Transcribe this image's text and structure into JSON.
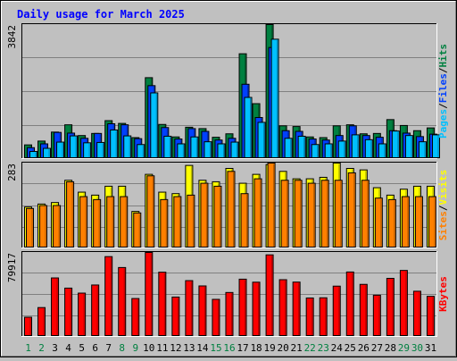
{
  "chart_data": {
    "type": "bar",
    "title": "Daily usage for March 2025",
    "categories": [
      "1",
      "2",
      "3",
      "4",
      "5",
      "6",
      "7",
      "8",
      "9",
      "10",
      "11",
      "12",
      "13",
      "14",
      "15",
      "16",
      "17",
      "18",
      "19",
      "20",
      "21",
      "22",
      "23",
      "24",
      "25",
      "26",
      "27",
      "28",
      "29",
      "30",
      "31"
    ],
    "weekend_days": [
      "1",
      "2",
      "8",
      "9",
      "15",
      "16",
      "22",
      "23",
      "29",
      "30"
    ],
    "panels": [
      {
        "name": "hits-files-pages",
        "ymax_label": "3842",
        "ylim": [
          0,
          3842
        ],
        "side_labels": [
          "Pages",
          "/",
          "Files",
          "/",
          "Hits"
        ],
        "side_label_colors": [
          "#00c0ff",
          "#000000",
          "#0040ff",
          "#000000",
          "#008040"
        ],
        "series": [
          {
            "name": "Hits",
            "color": "#008040",
            "values": [
              370,
              480,
              740,
              950,
              640,
              700,
              1070,
              990,
              580,
              2310,
              960,
              600,
              880,
              840,
              590,
              690,
              3000,
              1560,
              3842,
              920,
              900,
              600,
              580,
              920,
              950,
              690,
              700,
              1100,
              930,
              780,
              860
            ]
          },
          {
            "name": "Files",
            "color": "#0040ff",
            "values": [
              290,
              400,
              730,
              710,
              560,
              700,
              980,
              950,
              550,
              2080,
              870,
              540,
              840,
              760,
              510,
              560,
              2120,
              1160,
              3180,
              780,
              760,
              540,
              510,
              640,
              920,
              640,
              590,
              780,
              710,
              610,
              680
            ]
          },
          {
            "name": "Pages",
            "color": "#00c0ff",
            "values": [
              180,
              270,
              450,
              630,
              430,
              440,
              800,
              630,
              380,
              1870,
              620,
              400,
              600,
              460,
              400,
              450,
              1740,
              1020,
              3420,
              560,
              620,
              380,
              400,
              480,
              660,
              520,
              400,
              770,
              640,
              460,
              660
            ]
          }
        ]
      },
      {
        "name": "visits-sites",
        "ymax_label": "283",
        "ylim": [
          0,
          283
        ],
        "side_labels": [
          "Sites",
          "/",
          "Visits"
        ],
        "side_label_colors": [
          "#ff8000",
          "#000000",
          "#ffff00"
        ],
        "series": [
          {
            "name": "Visits",
            "color": "#ffff00",
            "values": [
              135,
              145,
              150,
              225,
              185,
              175,
              205,
              205,
              120,
              245,
              185,
              180,
              275,
              225,
              220,
              265,
              215,
              245,
              278,
              255,
              230,
              230,
              235,
              283,
              265,
              260,
              200,
              175,
              195,
              205,
              205
            ]
          },
          {
            "name": "Sites",
            "color": "#ff8000",
            "values": [
              130,
              140,
              140,
              220,
              170,
              160,
              170,
              170,
              115,
              240,
              160,
              170,
              175,
              215,
              205,
              255,
              180,
              230,
              283,
              225,
              225,
              215,
              225,
              225,
              250,
              225,
              165,
              160,
              170,
              170,
              170
            ]
          }
        ]
      },
      {
        "name": "kbytes",
        "ymax_label": "79917",
        "ylim": [
          0,
          79917
        ],
        "side_labels": [
          "KBytes"
        ],
        "side_label_colors": [
          "#ff0000"
        ],
        "series": [
          {
            "name": "KBytes",
            "color": "#ff0000",
            "values": [
              17600,
              26900,
              55400,
              45600,
              40800,
              48600,
              75900,
              65400,
              35600,
              79917,
              60900,
              37000,
              52800,
              47700,
              34800,
              41400,
              54200,
              51300,
              77600,
              53700,
              51400,
              36100,
              36300,
              47500,
              61100,
              49200,
              38800,
              55000,
              62600,
              42600,
              37700
            ]
          }
        ]
      }
    ]
  }
}
